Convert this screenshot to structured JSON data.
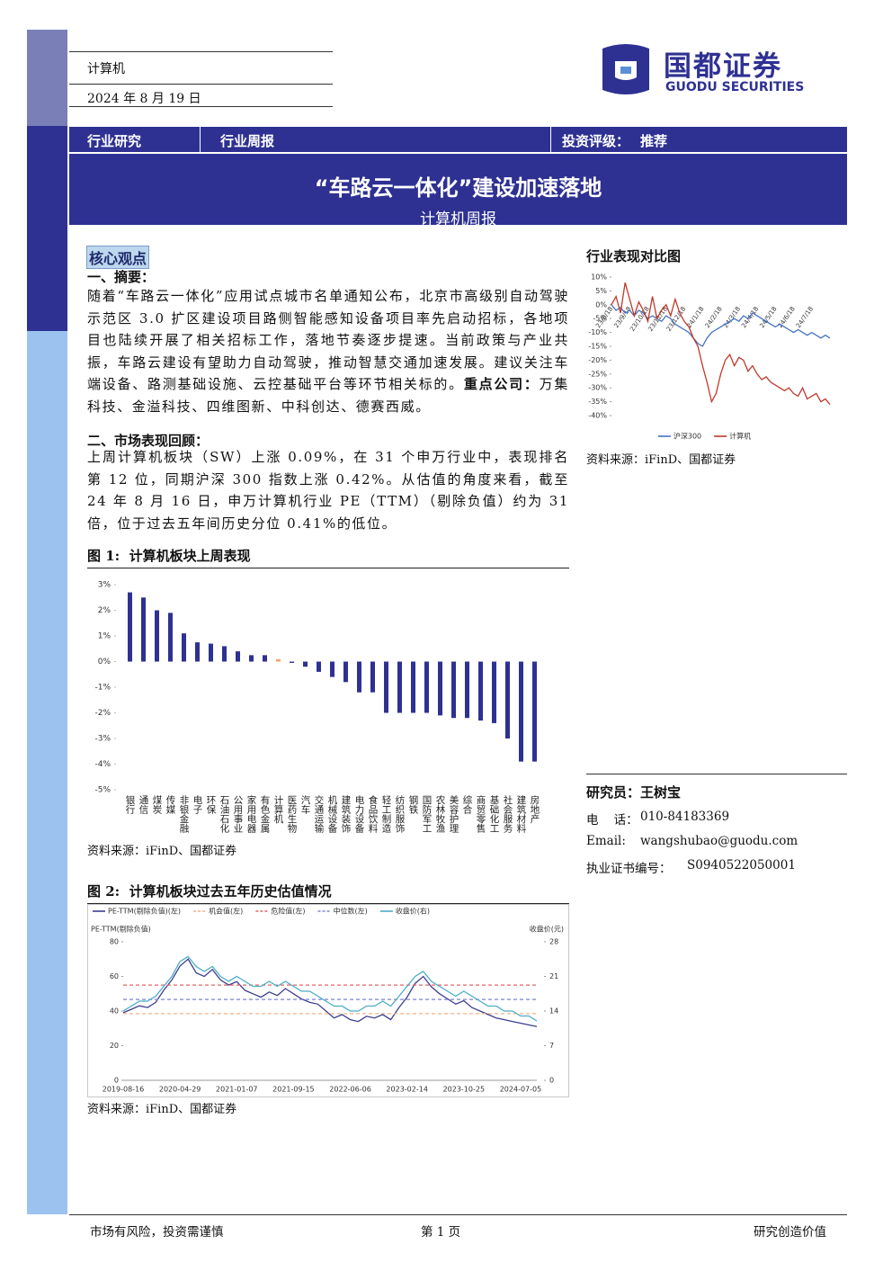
{
  "header": {
    "industry": "计算机",
    "date": "2024 年 8 月 19 日",
    "logo_cn": "国都证券",
    "logo_en": "GUODU SECURITIES"
  },
  "banner": {
    "category": "行业研究",
    "report_type": "行业周报",
    "rating_label": "投资评级：",
    "rating": "推荐",
    "title": "“车路云一体化”建设加速落地",
    "subtitle": "计算机周报"
  },
  "core": {
    "heading": "核心观点",
    "summary_title": "一、摘要：",
    "summary": "随着“车路云一体化”应用试点城市名单通知公布，北京市高级别自动驾驶示范区 3.0 扩区建设项目路侧智能感知设备项目率先启动招标，各地项目也陆续开展了相关招标工作，落地节奏逐步提速。当前政策与产业共振，车路云建设有望助力自动驾驶，推动智慧交通加速发展。建议关注车端设备、路测基础设施、云控基础平台等环节相关标的。",
    "key_label": "重点公司：",
    "key_companies": "万集科技、金溢科技、四维图新、中科创达、德赛西威。",
    "market_title": "二、市场表现回顾：",
    "market": "上周计算机板块（SW）上涨 0.09%，在 31 个申万行业中，表现排名第 12 位，同期沪深 300 指数上涨 0.42%。从估值的角度来看，截至 24 年 8 月 16 日，申万计算机行业 PE（TTM）（剔除负值）约为 31 倍，位于过去五年间历史分位 0.41%的低位。"
  },
  "analyst": {
    "title": "研究员：王树宝",
    "phone_label": "电    话：",
    "phone": "010-84183369",
    "email_label": "Email:",
    "email": "wangshubao@guodu.com",
    "cert_label": "执业证书编号：",
    "cert": "S0940522050001"
  },
  "footer": {
    "risk": "市场有风险，投资需谨慎",
    "page": "第 1 页",
    "slogan": "研究创造价值"
  },
  "chart_data": [
    {
      "type": "line",
      "title": "行业表现对比图",
      "source": "资料来源：iFinD、国都证券",
      "categories": [
        "23/8/18",
        null,
        null,
        null,
        "23/9/18",
        null,
        null,
        null,
        "23/10/18",
        null,
        null,
        null,
        "23/11/18",
        null,
        null,
        null,
        "23/12/18",
        null,
        null,
        null,
        "24/1/18",
        null,
        null,
        null,
        "24/2/18",
        null,
        null,
        null,
        "24/3/18",
        null,
        null,
        null,
        "24/4/18",
        null,
        null,
        null,
        "24/5/18",
        null,
        null,
        null,
        "24/6/18",
        null,
        null,
        null,
        "24/7/18",
        null,
        null,
        null,
        null
      ],
      "ylim": [
        -40,
        10
      ],
      "yticks": [
        {
          "value": 10,
          "label": "10%"
        },
        {
          "value": 5,
          "label": "5%"
        },
        {
          "value": 0,
          "label": "0%"
        },
        {
          "value": -5,
          "label": "-5%"
        },
        {
          "value": -10,
          "label": "-10%"
        },
        {
          "value": -15,
          "label": "-15%"
        },
        {
          "value": -20,
          "label": "-20%"
        },
        {
          "value": -25,
          "label": "-25%"
        },
        {
          "value": -30,
          "label": "-30%"
        },
        {
          "value": -35,
          "label": "-35%"
        },
        {
          "value": -40,
          "label": "-40%"
        }
      ],
      "series": [
        {
          "name": "沪深300",
          "color": "#4472c4",
          "values": [
            0,
            -2,
            -1,
            -3,
            -2,
            -4,
            -2,
            -3,
            -5,
            -4,
            -5,
            -6,
            -4,
            -5,
            -7,
            -8,
            -9,
            -10,
            -12,
            -14,
            -15,
            -12,
            -10,
            -9,
            -8,
            -7,
            -6,
            -5,
            -6,
            -4,
            -5,
            -3,
            -4,
            -5,
            -6,
            -7,
            -8,
            -7,
            -8,
            -9,
            -10,
            -9,
            -10,
            -11,
            -10,
            -11,
            -12,
            -11,
            -12
          ]
        },
        {
          "name": "计算机",
          "color": "#c0392b",
          "values": [
            0,
            3,
            -3,
            8,
            2,
            -4,
            1,
            -2,
            -6,
            3,
            -5,
            -2,
            0,
            -4,
            2,
            -3,
            -6,
            -8,
            -12,
            -15,
            -22,
            -28,
            -35,
            -32,
            -25,
            -20,
            -18,
            -22,
            -19,
            -20,
            -24,
            -22,
            -25,
            -27,
            -26,
            -28,
            -29,
            -30,
            -31,
            -30,
            -32,
            -33,
            -30,
            -34,
            -33,
            -32,
            -35,
            -34,
            -36
          ]
        }
      ]
    },
    {
      "type": "bar",
      "title": "图 1:  计算机板块上周表现",
      "source": "资料来源：iFinD、国都证券",
      "categories": [
        "银行",
        "通信",
        "煤炭",
        "传媒",
        "非银金融",
        "电子",
        "环保",
        "石油石化",
        "公用事业",
        "家用电器",
        "有色金属",
        "计算机",
        "医药生物",
        "汽车",
        "交通运输",
        "机械设备",
        "建筑装饰",
        "电力设备",
        "食品饮料",
        "轻工制造",
        "纺织服饰",
        "钢铁",
        "国防军工",
        "农林牧渔",
        "美容护理",
        "综合",
        "商贸零售",
        "基础化工",
        "社会服务",
        "建筑材料",
        "房地产"
      ],
      "values": [
        2.7,
        2.5,
        2.0,
        1.9,
        1.1,
        0.75,
        0.7,
        0.6,
        0.4,
        0.25,
        0.25,
        0.09,
        -0.05,
        -0.2,
        -0.4,
        -0.6,
        -0.8,
        -1.2,
        -1.2,
        -2.0,
        -2.0,
        -2.0,
        -2.0,
        -2.1,
        -2.2,
        -2.2,
        -2.3,
        -2.4,
        -3.0,
        -3.9,
        -3.9
      ],
      "color": "#2e3192",
      "highlight_category": "计算机",
      "highlight_color": "#f4a261",
      "ylim": [
        -5,
        3
      ],
      "yticks": [
        {
          "value": 3,
          "label": "3%"
        },
        {
          "value": 2,
          "label": "2%"
        },
        {
          "value": 1,
          "label": "1%"
        },
        {
          "value": 0,
          "label": "0%"
        },
        {
          "value": -1,
          "label": "-1%"
        },
        {
          "value": -2,
          "label": "-2%"
        },
        {
          "value": -3,
          "label": "-3%"
        },
        {
          "value": -4,
          "label": "-4%"
        },
        {
          "value": -5,
          "label": "-5%"
        }
      ]
    },
    {
      "type": "line",
      "title": "图 2:  计算机板块过去五年历史估值情况",
      "source": "资料来源：iFinD、国都证券",
      "ylabel": "PE-TTM(剔除负值)",
      "y2label": "收盘价(元)",
      "categories": [
        "2019-08-16",
        null,
        null,
        null,
        null,
        null,
        null,
        "2020-04-29",
        null,
        null,
        null,
        null,
        null,
        null,
        "2021-01-07",
        null,
        null,
        null,
        null,
        null,
        null,
        "2021-09-15",
        null,
        null,
        null,
        null,
        null,
        null,
        "2022-06-06",
        null,
        null,
        null,
        null,
        null,
        null,
        "2023-02-14",
        null,
        null,
        null,
        null,
        null,
        null,
        "2023-10-25",
        null,
        null,
        null,
        null,
        null,
        null,
        "2024-07-05",
        null,
        null
      ],
      "ylim": [
        0,
        80
      ],
      "yticks": [
        0,
        20,
        40,
        60,
        80
      ],
      "y2lim": [
        0,
        28
      ],
      "y2ticks": [
        0,
        7,
        14,
        21,
        28
      ],
      "series": [
        {
          "name": "PE-TTM(剔除负值)(左)",
          "color": "#3d3f8f",
          "values": [
            39,
            41,
            43,
            42,
            45,
            52,
            58,
            66,
            70,
            62,
            60,
            64,
            58,
            55,
            57,
            52,
            50,
            48,
            51,
            49,
            53,
            50,
            47,
            45,
            44,
            40,
            36,
            38,
            35,
            34,
            37,
            36,
            38,
            35,
            42,
            48,
            56,
            60,
            54,
            50,
            47,
            44,
            46,
            42,
            40,
            38,
            36,
            35,
            34,
            33,
            32,
            31
          ]
        },
        {
          "name": "机会值(左)",
          "color": "#f4b183",
          "value": 38.5,
          "dash": true
        },
        {
          "name": "危险值(左)",
          "color": "#e06666",
          "value": 55,
          "dash": true
        },
        {
          "name": "中位数(左)",
          "color": "#7b83d6",
          "value": 46.7,
          "dash": true
        },
        {
          "name": "收盘价(右)",
          "color": "#4bacc6",
          "axis": "y2",
          "values": [
            14,
            15,
            16,
            16,
            17,
            19,
            21,
            24,
            25,
            23,
            22,
            23,
            21,
            20,
            21,
            20,
            19,
            19,
            20,
            19,
            20,
            19,
            18,
            18,
            17,
            16,
            15,
            15,
            14,
            14,
            15,
            15,
            16,
            15,
            17,
            19,
            21,
            22,
            20,
            19,
            18,
            17,
            18,
            17,
            16,
            15,
            15,
            14,
            14,
            13,
            13,
            12
          ]
        }
      ]
    }
  ]
}
